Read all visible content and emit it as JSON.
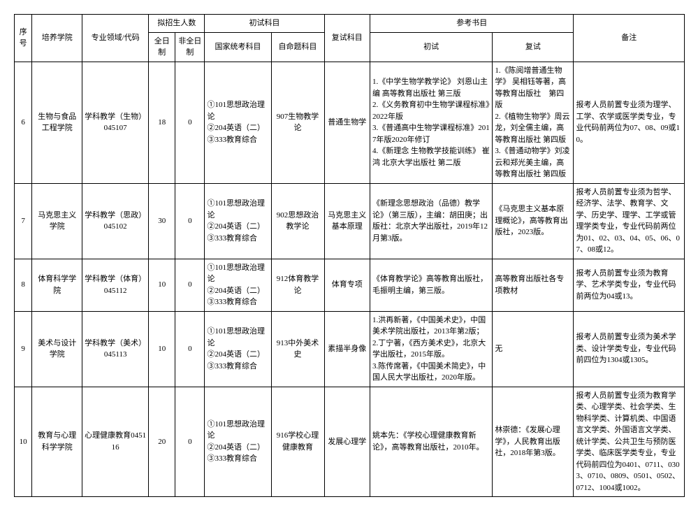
{
  "headers": {
    "seq": "序号",
    "institute": "培养学院",
    "major": "专业领域/代码",
    "enroll_group": "拟招生人数",
    "fulltime": "全日制",
    "parttime": "非全日制",
    "prelim_group": "初试科目",
    "exam_national": "国家统考科目",
    "exam_self": "自命题科目",
    "retest": "复试科目",
    "ref_group": "参考书目",
    "ref_prelim": "初试",
    "ref_retest": "复试",
    "note": "备注"
  },
  "rows": [
    {
      "seq": "6",
      "institute": "生物与食品工程学院",
      "major": "学科教学（生物）045107",
      "fulltime": "18",
      "parttime": "0",
      "exam_national": "①101思想政治理论\n②204英语（二）\n③333教育综合",
      "exam_self": "907生物教学论",
      "retest": "普通生物学",
      "ref_prelim": "1.《中学生物学教学论》 刘恩山主编 高等教育出版社 第三版\n2.《义务教育初中生物学课程标准》2022年版\n3.《普通高中生物学课程标准》2017年版2020年修订\n4.《新理念 生物教学技能训练》 崔鸿 北京大学出版社 第二版",
      "ref_retest": "1.《陈阅增普通生物学》 吴相钰等著，高等教育出版社　第四版\n2.《植物生物学》周云龙，刘全儒主编，高等教育出版社 第四版\n3.《普通动物学》刘凌云和郑光美主编，高等教育出版社 第四版",
      "note": "报考人员前置专业须为理学、工学、农学或医学类专业，专业代码前两位为07、08、09或10。"
    },
    {
      "seq": "7",
      "institute": "马克思主义学院",
      "major": "学科教学（思政）045102",
      "fulltime": "30",
      "parttime": "0",
      "exam_national": "①101思想政治理论\n②204英语（二）\n③333教育综合",
      "exam_self": "902思想政治教学论",
      "retest": "马克思主义基本原理",
      "ref_prelim": "《新理念思想政治（品德）教学论》（第三版），主编：胡田庚；出版社：北京大学出版社，2019年12月第3版。",
      "ref_retest": "《马克思主义基本原理概论》，高等教育出版社，2023版。",
      "note": "报考人员前置专业须为哲学、经济学、法学、教育学、文学、历史学、理学、工学或管理学类专业，专业代码前两位为01、02、03、04、05、06、07、08或12。"
    },
    {
      "seq": "8",
      "institute": "体育科学学院",
      "major": "学科教学（体育）045112",
      "fulltime": "10",
      "parttime": "0",
      "exam_national": "①101思想政治理论\n②204英语（二）\n③333教育综合",
      "exam_self": "912体育教学论",
      "retest": "体育专项",
      "ref_prelim": "《体育教学论》高等教育出版社，毛振明主编，第三版。",
      "ref_retest": "高等教育出版社各专项教材",
      "note": "报考人员前置专业须为教育学、艺术学类专业，专业代码前两位为04或13。"
    },
    {
      "seq": "9",
      "institute": "美术与设计学院",
      "major": "学科教学（美术）045113",
      "fulltime": "10",
      "parttime": "0",
      "exam_national": "①101思想政治理论\n②204英语（二）\n③333教育综合",
      "exam_self": "913中外美术史",
      "retest": "素描半身像",
      "ref_prelim": "1.洪再新著，《中国美术史》，中国美术学院出版社，2013年第2版；\n2.丁宁著，《西方美术史》，北京大学出版社，2015年版。\n3.陈传席著，《中国美术简史》，中国人民大学出版社，2020年版。",
      "ref_retest": "无",
      "note": "报考人员前置专业须为美术学类、设计学类专业，专业代码前四位为1304或1305。"
    },
    {
      "seq": "10",
      "institute": "教育与心理科学学院",
      "major": "心理健康教育045116",
      "fulltime": "20",
      "parttime": "0",
      "exam_national": "①101思想政治理论\n②204英语（二）\n③333教育综合",
      "exam_self": "916学校心理健康教育",
      "retest": "发展心理学",
      "ref_prelim": "姚本先：《学校心理健康教育新论》，高等教育出版社，2010年。",
      "ref_retest": "林崇德：《发展心理学》，人民教育出版社，2018年第3版。",
      "note": "报考人员前置专业须为教育学类、心理学类、社会学类、生物科学类、计算机类、中国语言文学类、外国语言文学类、统计学类、公共卫生与预防医学类、临床医学类专业，专业代码前四位为0401、0711、0303、0710、0809、0501、0502、0712、1004或1002。"
    }
  ]
}
